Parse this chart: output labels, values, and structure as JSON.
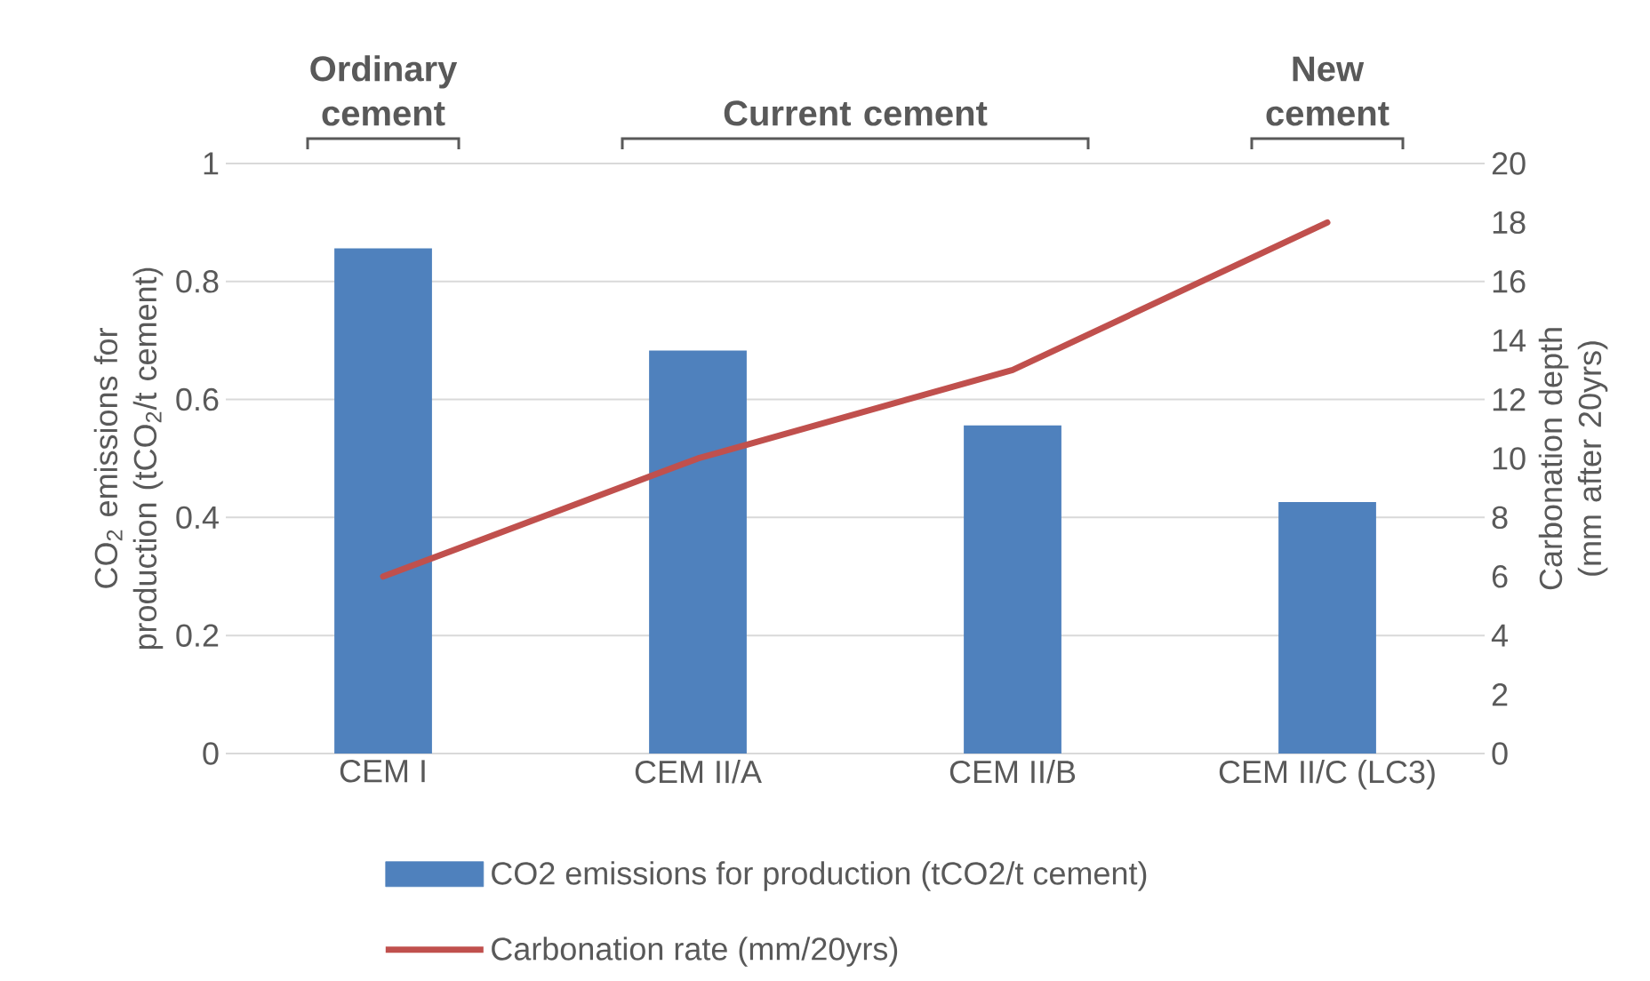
{
  "chart_data": {
    "type": "bar",
    "categories": [
      "CEM I",
      "CEM II/A",
      "CEM II/B",
      "CEM II/C (LC3)"
    ],
    "ylabel": "CO$_{2}$ emissions for production (tCO$_{2}$/t cement)",
    "y2label": "Carbonation depth (mm after 20yrs)",
    "ylim": [
      0,
      1
    ],
    "yticks": [
      0,
      0.2,
      0.4,
      0.6,
      0.8,
      1
    ],
    "y2lim": [
      0,
      20
    ],
    "y2ticks": [
      0,
      2,
      4,
      6,
      8,
      10,
      12,
      14,
      16,
      18,
      20
    ],
    "series": [
      {
        "name": "CO2 emissions for production (tCO2/t cement)",
        "color": "#4f81bd",
        "values": [
          0.856,
          0.683,
          0.556,
          0.426
        ]
      },
      {
        "name": "Carbonation rate (mm/20yrs)",
        "type": "line",
        "axis": "y2",
        "color": "#c0504d",
        "values": [
          6,
          10,
          13,
          18
        ]
      }
    ],
    "annotations": [
      "Ordinary cement",
      "Current cement",
      "New cement"
    ],
    "grid": "y",
    "legend": "bottom"
  }
}
